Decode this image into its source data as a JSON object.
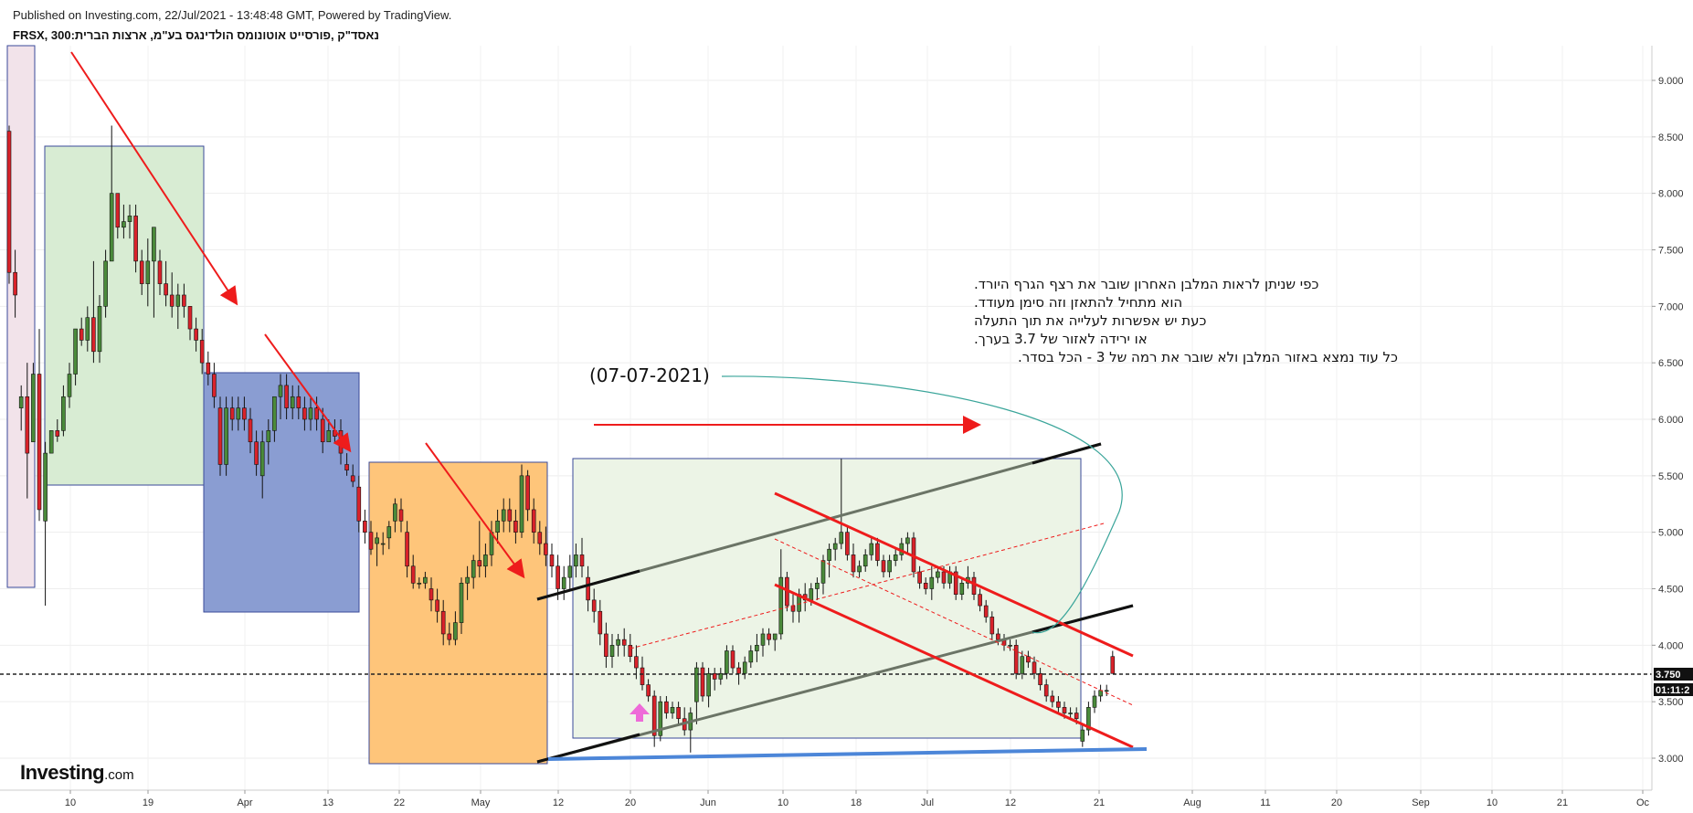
{
  "header": {
    "published": "Published on Investing.com, 22/Jul/2021 - 13:48:48 GMT, Powered by TradingView.",
    "symbol": "נאסד\"ק ,פורסייט אוטונומס הולדינגס בע\"מ, ארצות הברית:FRSX, 300"
  },
  "logo": {
    "main": "Investing",
    "suffix": ".com"
  },
  "annotation": {
    "lines": [
      "כפי שניתן לראות המלבן האחרון שובר את רצף הגרף היורד.",
      "הוא מתחיל להתאזן וזה סימן מעודד.",
      "כעת יש אפשרות לעלייה את תוך התעלה",
      "או ירידה לאזור של 3.7 בערך.",
      "כל עוד נמצא באזור המלבן ולא שובר את רמה של 3 - הכל בסדר."
    ],
    "date": "(07-07-2021)"
  },
  "price_tags": {
    "last_price": "3.750",
    "countdown": "01:11:2"
  },
  "colors": {
    "up": "#4a8a3a",
    "down": "#d9222a",
    "wick": "#111111",
    "box_pink": "#f2e3ea",
    "box_green": "#d8ecd3",
    "box_blue": "#8a9dd2",
    "box_orange": "#fec57a",
    "box_lightgreen": "#ecf4e6",
    "channel": "#6b7466",
    "trend_red": "#ee1c1c",
    "support_blue": "#4c86d8"
  },
  "chart_data": {
    "type": "candlestick",
    "y_axis": {
      "ticks": [
        "9.000",
        "8.500",
        "8.000",
        "7.500",
        "7.000",
        "6.500",
        "6.000",
        "5.500",
        "5.000",
        "4.500",
        "4.000",
        "3.500",
        "3.000"
      ]
    },
    "x_axis": {
      "ticks": [
        "10",
        "19",
        "Apr",
        "13",
        "22",
        "May",
        "12",
        "20",
        "Jun",
        "10",
        "18",
        "Jul",
        "12",
        "21",
        "Aug",
        "11",
        "20",
        "Sep",
        "10",
        "21",
        "Oc"
      ]
    },
    "horizontal_line": 3.75,
    "candles": [
      [
        0,
        8.55,
        8.6,
        7.2,
        7.3
      ],
      [
        1,
        7.3,
        7.5,
        6.9,
        7.1
      ],
      [
        2,
        6.1,
        6.3,
        5.9,
        6.2
      ],
      [
        3,
        6.2,
        6.5,
        5.3,
        5.7
      ],
      [
        4,
        5.8,
        6.5,
        5.8,
        6.4
      ],
      [
        5,
        6.4,
        6.8,
        5.1,
        5.2
      ],
      [
        6,
        5.1,
        5.8,
        4.35,
        5.7
      ],
      [
        7,
        5.7,
        5.9,
        5.7,
        5.9
      ],
      [
        8,
        5.9,
        6.0,
        5.8,
        5.85
      ],
      [
        9,
        5.9,
        6.3,
        5.85,
        6.2
      ],
      [
        10,
        6.2,
        6.5,
        6.1,
        6.4
      ],
      [
        11,
        6.4,
        6.8,
        6.3,
        6.8
      ],
      [
        12,
        6.8,
        6.9,
        6.65,
        6.7
      ],
      [
        13,
        6.7,
        7.0,
        6.6,
        6.9
      ],
      [
        14,
        6.9,
        7.4,
        6.5,
        6.6
      ],
      [
        15,
        6.6,
        7.1,
        6.5,
        7.0
      ],
      [
        16,
        7.0,
        7.5,
        6.9,
        7.4
      ],
      [
        17,
        7.4,
        8.6,
        7.4,
        8.0
      ],
      [
        18,
        8.0,
        8.0,
        7.6,
        7.7
      ],
      [
        19,
        7.7,
        7.9,
        7.6,
        7.75
      ],
      [
        20,
        7.75,
        7.9,
        7.6,
        7.8
      ],
      [
        21,
        7.8,
        7.9,
        7.3,
        7.4
      ],
      [
        22,
        7.4,
        7.5,
        7.1,
        7.2
      ],
      [
        23,
        7.2,
        7.6,
        7.0,
        7.4
      ],
      [
        24,
        7.4,
        7.7,
        6.9,
        7.7
      ],
      [
        25,
        7.4,
        7.5,
        7.1,
        7.2
      ],
      [
        26,
        7.2,
        7.4,
        7.0,
        7.1
      ],
      [
        27,
        7.1,
        7.3,
        6.9,
        7.0
      ],
      [
        28,
        7.0,
        7.2,
        6.8,
        7.1
      ],
      [
        29,
        7.1,
        7.2,
        6.9,
        7.0
      ],
      [
        30,
        7.0,
        7.0,
        6.7,
        6.8
      ],
      [
        31,
        6.8,
        6.9,
        6.6,
        6.7
      ],
      [
        32,
        6.7,
        6.8,
        6.4,
        6.5
      ],
      [
        33,
        6.5,
        6.6,
        6.3,
        6.4
      ],
      [
        34,
        6.4,
        6.5,
        6.1,
        6.2
      ],
      [
        35,
        6.1,
        6.2,
        5.5,
        5.6
      ],
      [
        36,
        5.6,
        6.2,
        5.5,
        6.1
      ],
      [
        37,
        6.1,
        6.2,
        5.9,
        6.0
      ],
      [
        38,
        6.0,
        6.2,
        5.9,
        6.1
      ],
      [
        39,
        6.1,
        6.2,
        5.9,
        6.0
      ],
      [
        40,
        6.0,
        6.1,
        5.7,
        5.8
      ],
      [
        41,
        5.8,
        5.9,
        5.5,
        5.6
      ],
      [
        42,
        5.5,
        5.9,
        5.3,
        5.8
      ],
      [
        43,
        5.8,
        6.0,
        5.6,
        5.9
      ],
      [
        44,
        5.9,
        6.2,
        5.8,
        6.2
      ],
      [
        45,
        6.2,
        6.4,
        6.0,
        6.3
      ],
      [
        46,
        6.3,
        6.4,
        6.0,
        6.1
      ],
      [
        47,
        6.1,
        6.3,
        6.0,
        6.2
      ],
      [
        48,
        6.2,
        6.3,
        6.0,
        6.1
      ],
      [
        49,
        6.1,
        6.2,
        5.9,
        6.0
      ],
      [
        50,
        6.0,
        6.2,
        5.9,
        6.1
      ],
      [
        51,
        6.1,
        6.2,
        5.9,
        6.0
      ],
      [
        52,
        6.0,
        6.1,
        5.7,
        5.8
      ],
      [
        53,
        5.8,
        6.0,
        5.8,
        5.9
      ],
      [
        54,
        5.9,
        6.0,
        5.8,
        5.85
      ],
      [
        55,
        5.9,
        6.0,
        5.6,
        5.7
      ],
      [
        56,
        5.6,
        5.7,
        5.5,
        5.55
      ],
      [
        57,
        5.5,
        5.6,
        5.4,
        5.45
      ],
      [
        58,
        5.4,
        5.5,
        5.0,
        5.1
      ],
      [
        59,
        5.1,
        5.2,
        4.9,
        5.0
      ],
      [
        60,
        5.0,
        5.1,
        4.8,
        4.85
      ],
      [
        61,
        4.9,
        5.0,
        4.7,
        4.95
      ],
      [
        62,
        4.9,
        5.0,
        4.8,
        4.9
      ],
      [
        63,
        4.95,
        5.1,
        4.85,
        5.05
      ],
      [
        64,
        5.1,
        5.3,
        5.0,
        5.25
      ],
      [
        65,
        5.2,
        5.3,
        5.0,
        5.1
      ],
      [
        66,
        5.0,
        5.1,
        4.6,
        4.7
      ],
      [
        67,
        4.7,
        4.8,
        4.5,
        4.55
      ],
      [
        68,
        4.55,
        4.6,
        4.5,
        4.55
      ],
      [
        69,
        4.55,
        4.65,
        4.5,
        4.6
      ],
      [
        70,
        4.5,
        4.6,
        4.3,
        4.4
      ],
      [
        71,
        4.4,
        4.5,
        4.2,
        4.3
      ],
      [
        72,
        4.3,
        4.4,
        4.0,
        4.1
      ],
      [
        73,
        4.1,
        4.2,
        4.0,
        4.05
      ],
      [
        74,
        4.05,
        4.3,
        4.0,
        4.2
      ],
      [
        75,
        4.2,
        4.6,
        4.1,
        4.55
      ],
      [
        76,
        4.55,
        4.7,
        4.4,
        4.6
      ],
      [
        77,
        4.6,
        4.8,
        4.5,
        4.75
      ],
      [
        78,
        4.75,
        5.1,
        4.6,
        4.7
      ],
      [
        79,
        4.7,
        4.9,
        4.6,
        4.8
      ],
      [
        80,
        4.8,
        5.1,
        4.7,
        5.0
      ],
      [
        81,
        5.0,
        5.2,
        4.9,
        5.1
      ],
      [
        82,
        5.1,
        5.3,
        5.0,
        5.2
      ],
      [
        83,
        5.2,
        5.3,
        5.0,
        5.1
      ],
      [
        84,
        5.1,
        5.2,
        4.9,
        5.0
      ],
      [
        85,
        5.0,
        5.6,
        4.95,
        5.5
      ],
      [
        86,
        5.5,
        5.55,
        5.1,
        5.2
      ],
      [
        87,
        5.2,
        5.3,
        4.9,
        5.0
      ],
      [
        88,
        5.0,
        5.1,
        4.8,
        4.9
      ],
      [
        89,
        4.9,
        5.05,
        4.7,
        4.8
      ],
      [
        90,
        4.8,
        4.9,
        4.6,
        4.7
      ],
      [
        91,
        4.7,
        4.8,
        4.4,
        4.5
      ],
      [
        92,
        4.5,
        4.7,
        4.4,
        4.6
      ],
      [
        93,
        4.6,
        4.8,
        4.5,
        4.7
      ],
      [
        94,
        4.7,
        4.9,
        4.6,
        4.8
      ],
      [
        95,
        4.8,
        4.95,
        4.6,
        4.7
      ],
      [
        96,
        4.6,
        4.7,
        4.3,
        4.4
      ],
      [
        97,
        4.4,
        4.5,
        4.2,
        4.3
      ],
      [
        98,
        4.3,
        4.4,
        4.0,
        4.1
      ],
      [
        99,
        4.1,
        4.2,
        3.8,
        3.9
      ],
      [
        100,
        3.9,
        4.1,
        3.8,
        4.0
      ],
      [
        101,
        4.0,
        4.1,
        3.9,
        4.05
      ],
      [
        102,
        4.05,
        4.15,
        3.9,
        4.0
      ],
      [
        103,
        4.0,
        4.1,
        3.85,
        3.9
      ],
      [
        104,
        3.9,
        4.0,
        3.7,
        3.8
      ],
      [
        105,
        3.8,
        3.9,
        3.6,
        3.65
      ],
      [
        106,
        3.65,
        3.7,
        3.5,
        3.55
      ],
      [
        107,
        3.55,
        3.6,
        3.1,
        3.2
      ],
      [
        108,
        3.2,
        3.55,
        3.15,
        3.5
      ],
      [
        109,
        3.5,
        3.55,
        3.35,
        3.4
      ],
      [
        110,
        3.4,
        3.5,
        3.35,
        3.45
      ],
      [
        111,
        3.45,
        3.5,
        3.3,
        3.35
      ],
      [
        112,
        3.35,
        3.45,
        3.2,
        3.25
      ],
      [
        113,
        3.25,
        3.45,
        3.05,
        3.4
      ],
      [
        114,
        3.5,
        3.85,
        3.3,
        3.8
      ],
      [
        115,
        3.8,
        3.85,
        3.5,
        3.55
      ],
      [
        116,
        3.55,
        3.8,
        3.45,
        3.75
      ],
      [
        117,
        3.75,
        3.8,
        3.6,
        3.7
      ],
      [
        118,
        3.7,
        3.8,
        3.65,
        3.75
      ],
      [
        119,
        3.75,
        4.0,
        3.7,
        3.95
      ],
      [
        120,
        3.95,
        4.0,
        3.75,
        3.8
      ],
      [
        121,
        3.8,
        3.85,
        3.65,
        3.75
      ],
      [
        122,
        3.75,
        3.9,
        3.7,
        3.85
      ],
      [
        123,
        3.85,
        4.0,
        3.8,
        3.95
      ],
      [
        124,
        3.95,
        4.1,
        3.85,
        4.0
      ],
      [
        125,
        4.0,
        4.15,
        3.9,
        4.1
      ],
      [
        126,
        4.1,
        4.15,
        4.0,
        4.05
      ],
      [
        127,
        4.05,
        4.1,
        3.95,
        4.1
      ],
      [
        128,
        4.1,
        4.85,
        4.05,
        4.6
      ],
      [
        129,
        4.6,
        4.65,
        4.3,
        4.35
      ],
      [
        130,
        4.35,
        4.45,
        4.2,
        4.3
      ],
      [
        131,
        4.3,
        4.5,
        4.2,
        4.45
      ],
      [
        132,
        4.45,
        4.55,
        4.3,
        4.4
      ],
      [
        133,
        4.4,
        4.55,
        4.35,
        4.5
      ],
      [
        134,
        4.5,
        4.6,
        4.4,
        4.55
      ],
      [
        135,
        4.55,
        4.8,
        4.45,
        4.75
      ],
      [
        136,
        4.75,
        4.9,
        4.6,
        4.85
      ],
      [
        137,
        4.85,
        4.95,
        4.75,
        4.9
      ],
      [
        138,
        4.9,
        5.65,
        4.85,
        5.0
      ],
      [
        139,
        5.0,
        5.05,
        4.75,
        4.8
      ],
      [
        140,
        4.8,
        4.9,
        4.6,
        4.65
      ],
      [
        141,
        4.65,
        4.75,
        4.6,
        4.7
      ],
      [
        142,
        4.7,
        4.85,
        4.65,
        4.8
      ],
      [
        143,
        4.8,
        4.95,
        4.75,
        4.9
      ],
      [
        144,
        4.9,
        4.95,
        4.7,
        4.75
      ],
      [
        145,
        4.75,
        4.8,
        4.6,
        4.65
      ],
      [
        146,
        4.65,
        4.8,
        4.6,
        4.75
      ],
      [
        147,
        4.75,
        4.85,
        4.7,
        4.8
      ],
      [
        148,
        4.8,
        4.95,
        4.75,
        4.9
      ],
      [
        149,
        4.9,
        5.0,
        4.8,
        4.95
      ],
      [
        150,
        4.95,
        5.0,
        4.6,
        4.65
      ],
      [
        151,
        4.65,
        4.7,
        4.5,
        4.55
      ],
      [
        152,
        4.55,
        4.6,
        4.45,
        4.5
      ],
      [
        153,
        4.5,
        4.7,
        4.4,
        4.6
      ],
      [
        154,
        4.6,
        4.7,
        4.55,
        4.65
      ],
      [
        155,
        4.65,
        4.7,
        4.5,
        4.55
      ],
      [
        156,
        4.55,
        4.7,
        4.5,
        4.65
      ],
      [
        157,
        4.65,
        4.7,
        4.4,
        4.45
      ],
      [
        158,
        4.45,
        4.6,
        4.4,
        4.55
      ],
      [
        159,
        4.55,
        4.7,
        4.5,
        4.6
      ],
      [
        160,
        4.6,
        4.65,
        4.4,
        4.45
      ],
      [
        161,
        4.45,
        4.5,
        4.3,
        4.35
      ],
      [
        162,
        4.35,
        4.4,
        4.2,
        4.25
      ],
      [
        163,
        4.25,
        4.3,
        4.05,
        4.1
      ],
      [
        164,
        4.1,
        4.15,
        4.0,
        4.05
      ],
      [
        165,
        4.05,
        4.1,
        3.95,
        4.0
      ],
      [
        166,
        4.0,
        4.05,
        3.95,
        4.0
      ],
      [
        167,
        4.0,
        4.05,
        3.7,
        3.75
      ],
      [
        168,
        3.75,
        3.95,
        3.7,
        3.9
      ],
      [
        169,
        3.9,
        3.95,
        3.8,
        3.85
      ],
      [
        170,
        3.85,
        3.9,
        3.7,
        3.75
      ],
      [
        171,
        3.75,
        3.8,
        3.6,
        3.65
      ],
      [
        172,
        3.65,
        3.7,
        3.5,
        3.55
      ],
      [
        173,
        3.55,
        3.6,
        3.45,
        3.5
      ],
      [
        174,
        3.5,
        3.55,
        3.4,
        3.45
      ],
      [
        175,
        3.45,
        3.5,
        3.35,
        3.4
      ],
      [
        176,
        3.4,
        3.45,
        3.35,
        3.4
      ],
      [
        177,
        3.4,
        3.45,
        3.3,
        3.35
      ],
      [
        178,
        3.15,
        3.3,
        3.1,
        3.25
      ],
      [
        179,
        3.25,
        3.5,
        3.2,
        3.45
      ],
      [
        180,
        3.45,
        3.6,
        3.4,
        3.55
      ],
      [
        181,
        3.55,
        3.65,
        3.5,
        3.6
      ],
      [
        182,
        3.6,
        3.65,
        3.55,
        3.6
      ],
      [
        183,
        3.9,
        3.95,
        3.75,
        3.75
      ]
    ]
  }
}
